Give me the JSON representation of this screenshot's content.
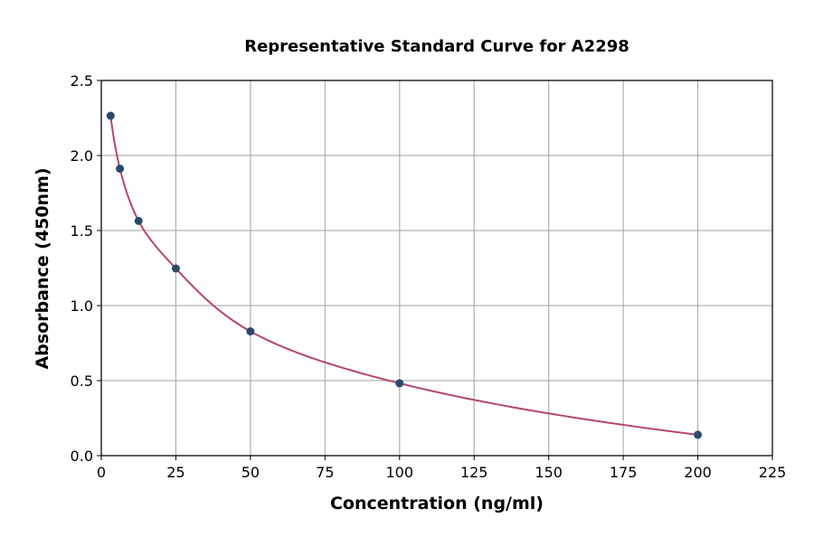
{
  "chart_data": {
    "type": "scatter",
    "title": "Representative Standard Curve for A2298",
    "xlabel": "Concentration (ng/ml)",
    "ylabel": "Absorbance (450nm)",
    "xlim": [
      0,
      225
    ],
    "ylim": [
      0,
      2.5
    ],
    "xticks": [
      0,
      25,
      50,
      75,
      100,
      125,
      150,
      175,
      200,
      225
    ],
    "yticks": [
      0.0,
      0.5,
      1.0,
      1.5,
      2.0,
      2.5
    ],
    "xtick_labels": [
      "0",
      "25",
      "50",
      "75",
      "100",
      "125",
      "150",
      "175",
      "200",
      "225"
    ],
    "ytick_labels": [
      "0.0",
      "0.5",
      "1.0",
      "1.5",
      "2.0",
      "2.5"
    ],
    "grid": true,
    "points": {
      "x": [
        3.125,
        6.25,
        12.5,
        25,
        50,
        100,
        200
      ],
      "y": [
        2.265,
        1.912,
        1.564,
        1.247,
        0.828,
        0.482,
        0.139
      ]
    },
    "fit_curve": true,
    "colors": {
      "points": "#2b4a6b",
      "curve": "#b5476b",
      "grid": "#b0b0b0"
    }
  }
}
